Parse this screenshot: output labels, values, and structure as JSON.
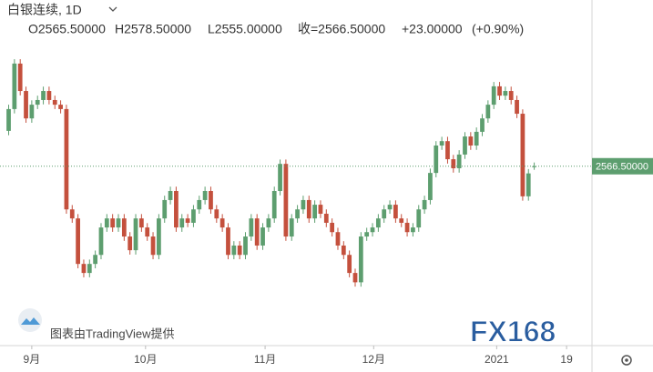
{
  "chart_data": {
    "type": "candlestick",
    "title": "白银连续, 1D",
    "ohlc_header": [
      "O2565.50000",
      "H2578.50000",
      "L2555.00000",
      "收=2566.50000",
      "+23.00000",
      "(+0.90%)"
    ],
    "last_price_label": "2566.50000",
    "watermark": "图表由TradingView提供",
    "logo": "FX168",
    "up_color": "#5d9e6f",
    "down_color": "#c4503d",
    "ylim": [
      2020,
      3100
    ],
    "xlim": [
      -1.5,
      101
    ],
    "xticks": [
      {
        "value": 4,
        "label": "9月"
      },
      {
        "value": 23.7,
        "label": "10月"
      },
      {
        "value": 44.4,
        "label": "11月"
      },
      {
        "value": 63.2,
        "label": "12月"
      },
      {
        "value": 84.5,
        "label": "2021"
      },
      {
        "value": 96.6,
        "label": "19"
      }
    ],
    "open": [
      2680,
      2750,
      2896,
      2808,
      2720,
      2764,
      2779,
      2808,
      2779,
      2764,
      2750,
      2428,
      2399,
      2253,
      2224,
      2253,
      2282,
      2370,
      2399,
      2370,
      2399,
      2341,
      2297,
      2399,
      2370,
      2341,
      2282,
      2399,
      2458,
      2487,
      2370,
      2399,
      2385,
      2428,
      2458,
      2487,
      2428,
      2399,
      2370,
      2282,
      2312,
      2282,
      2341,
      2399,
      2312,
      2370,
      2399,
      2487,
      2574,
      2341,
      2399,
      2428,
      2458,
      2399,
      2443,
      2414,
      2385,
      2355,
      2312,
      2282,
      2224,
      2194,
      2341,
      2355,
      2370,
      2399,
      2428,
      2443,
      2399,
      2385,
      2355,
      2370,
      2428,
      2458,
      2545,
      2633,
      2647,
      2589,
      2560,
      2604,
      2662,
      2633,
      2677,
      2720,
      2764,
      2823,
      2793,
      2808,
      2779,
      2735,
      2470,
      2565.5
    ],
    "high": [
      2764,
      2910,
      2910,
      2822,
      2778,
      2793,
      2822,
      2822,
      2793,
      2778,
      2764,
      2442,
      2413,
      2267,
      2267,
      2296,
      2384,
      2413,
      2413,
      2413,
      2413,
      2355,
      2413,
      2413,
      2384,
      2355,
      2413,
      2472,
      2501,
      2501,
      2413,
      2413,
      2442,
      2472,
      2501,
      2501,
      2442,
      2413,
      2384,
      2326,
      2326,
      2355,
      2413,
      2413,
      2384,
      2413,
      2501,
      2588,
      2588,
      2413,
      2442,
      2472,
      2472,
      2457,
      2457,
      2428,
      2399,
      2369,
      2326,
      2296,
      2238,
      2355,
      2369,
      2384,
      2413,
      2442,
      2457,
      2457,
      2413,
      2399,
      2384,
      2442,
      2472,
      2559,
      2647,
      2661,
      2661,
      2603,
      2618,
      2676,
      2676,
      2691,
      2734,
      2778,
      2837,
      2837,
      2822,
      2822,
      2793,
      2749,
      2557.5,
      2578.5
    ],
    "low": [
      2666,
      2736,
      2794,
      2706,
      2706,
      2750,
      2765,
      2765,
      2750,
      2736,
      2414,
      2385,
      2239,
      2210,
      2210,
      2239,
      2268,
      2356,
      2356,
      2356,
      2327,
      2283,
      2283,
      2356,
      2327,
      2268,
      2268,
      2385,
      2444,
      2356,
      2356,
      2371,
      2371,
      2414,
      2444,
      2414,
      2385,
      2356,
      2268,
      2268,
      2268,
      2268,
      2327,
      2298,
      2298,
      2356,
      2385,
      2473,
      2327,
      2327,
      2385,
      2414,
      2385,
      2385,
      2400,
      2371,
      2341,
      2298,
      2268,
      2210,
      2180,
      2180,
      2327,
      2341,
      2356,
      2385,
      2414,
      2385,
      2371,
      2341,
      2341,
      2356,
      2414,
      2444,
      2531,
      2619,
      2575,
      2546,
      2546,
      2590,
      2619,
      2619,
      2663,
      2706,
      2750,
      2779,
      2779,
      2765,
      2721,
      2456,
      2456,
      2555
    ],
    "close": [
      2750,
      2896,
      2808,
      2720,
      2764,
      2779,
      2808,
      2779,
      2764,
      2750,
      2428,
      2399,
      2253,
      2224,
      2253,
      2282,
      2370,
      2399,
      2370,
      2399,
      2341,
      2297,
      2399,
      2370,
      2341,
      2282,
      2399,
      2458,
      2487,
      2370,
      2399,
      2385,
      2428,
      2458,
      2487,
      2428,
      2399,
      2370,
      2282,
      2312,
      2282,
      2341,
      2399,
      2312,
      2370,
      2399,
      2487,
      2574,
      2341,
      2399,
      2428,
      2458,
      2399,
      2443,
      2414,
      2385,
      2355,
      2312,
      2282,
      2224,
      2194,
      2341,
      2355,
      2370,
      2399,
      2428,
      2443,
      2399,
      2385,
      2355,
      2370,
      2428,
      2458,
      2545,
      2633,
      2647,
      2589,
      2560,
      2604,
      2662,
      2633,
      2677,
      2720,
      2764,
      2823,
      2793,
      2808,
      2779,
      2735,
      2470,
      2543.5,
      2566.5
    ]
  }
}
